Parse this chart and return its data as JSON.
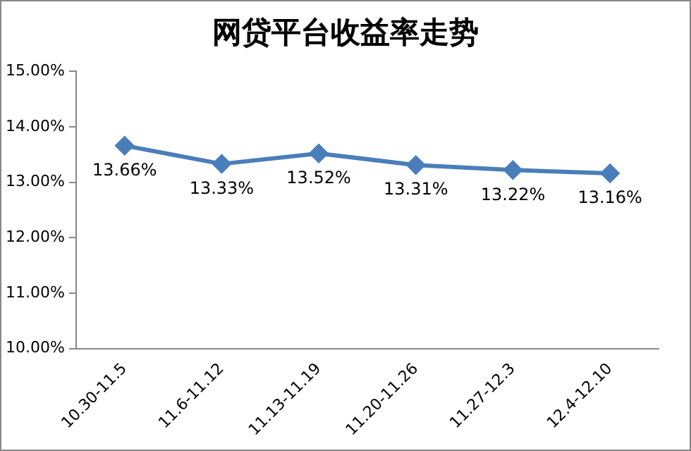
{
  "chart_data": {
    "type": "line",
    "title": "网贷平台收益率走势",
    "categories": [
      "10.30-11.5",
      "11.6-11.12",
      "11.13-11.19",
      "11.20-11.26",
      "11.27-12.3",
      "12.4-12.10"
    ],
    "series": [
      {
        "color": "#4a7ebb",
        "values": [
          13.66,
          13.33,
          13.52,
          13.31,
          13.22,
          13.16
        ],
        "value_labels": [
          "13.66%",
          "13.33%",
          "13.52%",
          "13.31%",
          "13.22%",
          "13.16%"
        ]
      }
    ],
    "ylim": [
      10,
      15
    ],
    "yticks": [
      {
        "value": 10,
        "label": "10.00%"
      },
      {
        "value": 11,
        "label": "11.00%"
      },
      {
        "value": 12,
        "label": "12.00%"
      },
      {
        "value": 13,
        "label": "13.00%"
      },
      {
        "value": 14,
        "label": "14.00%"
      },
      {
        "value": 15,
        "label": "15.00%"
      }
    ],
    "grid": false,
    "legend": false,
    "marker": "diamond",
    "line_style": "solid"
  }
}
